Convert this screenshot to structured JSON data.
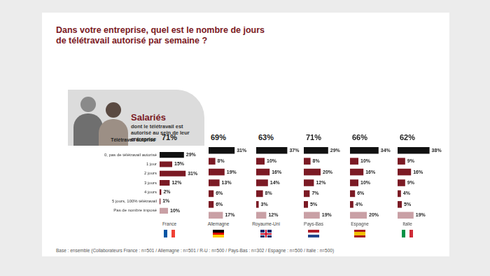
{
  "title": "Dans votre entreprise, quel est le nombre de jours de télétravail autorisé par semaine ?",
  "panel": {
    "title": "Salariés",
    "subtitle": "dont le télétravail est autorisé au sein de leur entreprise"
  },
  "row_label": "Télétravail autorisé",
  "note": "Base : ensemble (Collaborateurs France : n=501 / Allemagne : n=501 / R-U : n=500 / Pays-Bas : n=302 / Espagne : n=500 / Italie : n=500)",
  "chart_data": [
    {
      "type": "bar",
      "orientation": "horizontal",
      "title": "France",
      "total": {
        "value": 71,
        "label": "71%"
      },
      "categories": [
        "0, pas de télétravail autorisé",
        "1 jour",
        "2 jours",
        "3 jours",
        "4 jours",
        "5 jours, 100% télétravail",
        "Pas de nombre imposé"
      ],
      "values": [
        29,
        15,
        31,
        12,
        2,
        1,
        10
      ],
      "value_labels": [
        "29%",
        "15%",
        "31%",
        "12%",
        "2%",
        "1%",
        "10%"
      ],
      "colors": [
        "#111111",
        "#7b1a24",
        "#7b1a24",
        "#7b1a24",
        "#7b1a24",
        "#7b1a24",
        "#c9a0a5"
      ],
      "xlim": [
        0,
        40
      ],
      "data_labels": true,
      "tick_labels": "y"
    },
    {
      "type": "bar",
      "orientation": "horizontal",
      "title": "Allemagne",
      "total": {
        "value": 69,
        "label": "69%"
      },
      "categories": [
        "0, pas de télétravail autorisé",
        "1 jour",
        "2 jours",
        "3 jours",
        "4 jours",
        "5 jours, 100% télétravail",
        "Pas de nombre imposé"
      ],
      "values": [
        31,
        8,
        19,
        13,
        6,
        6,
        17
      ],
      "value_labels": [
        "31%",
        "8%",
        "19%",
        "13%",
        "6%",
        "6%",
        "17%"
      ],
      "colors": [
        "#111111",
        "#7b1a24",
        "#7b1a24",
        "#7b1a24",
        "#7b1a24",
        "#7b1a24",
        "#c9a0a5"
      ],
      "xlim": [
        0,
        40
      ],
      "data_labels": true,
      "tick_labels": false
    },
    {
      "type": "bar",
      "orientation": "horizontal",
      "title": "Royaume-Uni",
      "total": {
        "value": 63,
        "label": "63%"
      },
      "categories": [
        "0, pas de télétravail autorisé",
        "1 jour",
        "2 jours",
        "3 jours",
        "4 jours",
        "5 jours, 100% télétravail",
        "Pas de nombre imposé"
      ],
      "values": [
        37,
        10,
        16,
        14,
        8,
        3,
        12
      ],
      "value_labels": [
        "37%",
        "10%",
        "16%",
        "14%",
        "8%",
        "3%",
        "12%"
      ],
      "colors": [
        "#111111",
        "#7b1a24",
        "#7b1a24",
        "#7b1a24",
        "#7b1a24",
        "#7b1a24",
        "#c9a0a5"
      ],
      "xlim": [
        0,
        40
      ],
      "data_labels": true,
      "tick_labels": false
    },
    {
      "type": "bar",
      "orientation": "horizontal",
      "title": "Pays-Bas",
      "total": {
        "value": 71,
        "label": "71%"
      },
      "categories": [
        "0, pas de télétravail autorisé",
        "1 jour",
        "2 jours",
        "3 jours",
        "4 jours",
        "5 jours, 100% télétravail",
        "Pas de nombre imposé"
      ],
      "values": [
        29,
        8,
        20,
        12,
        7,
        5,
        19
      ],
      "value_labels": [
        "29%",
        "8%",
        "20%",
        "12%",
        "7%",
        "5%",
        "19%"
      ],
      "colors": [
        "#111111",
        "#7b1a24",
        "#7b1a24",
        "#7b1a24",
        "#7b1a24",
        "#7b1a24",
        "#c9a0a5"
      ],
      "xlim": [
        0,
        40
      ],
      "data_labels": true,
      "tick_labels": false
    },
    {
      "type": "bar",
      "orientation": "horizontal",
      "title": "Espagne",
      "total": {
        "value": 66,
        "label": "66%"
      },
      "categories": [
        "0, pas de télétravail autorisé",
        "1 jour",
        "2 jours",
        "3 jours",
        "4 jours",
        "5 jours, 100% télétravail",
        "Pas de nombre imposé"
      ],
      "values": [
        34,
        10,
        16,
        10,
        6,
        4,
        20
      ],
      "value_labels": [
        "34%",
        "10%",
        "16%",
        "10%",
        "6%",
        "4%",
        "20%"
      ],
      "colors": [
        "#111111",
        "#7b1a24",
        "#7b1a24",
        "#7b1a24",
        "#7b1a24",
        "#7b1a24",
        "#c9a0a5"
      ],
      "xlim": [
        0,
        40
      ],
      "data_labels": true,
      "tick_labels": false
    },
    {
      "type": "bar",
      "orientation": "horizontal",
      "title": "Italie",
      "total": {
        "value": 62,
        "label": "62%"
      },
      "categories": [
        "0, pas de télétravail autorisé",
        "1 jour",
        "2 jours",
        "3 jours",
        "4 jours",
        "5 jours, 100% télétravail",
        "Pas de nombre imposé"
      ],
      "values": [
        38,
        9,
        16,
        9,
        4,
        5,
        19
      ],
      "value_labels": [
        "38%",
        "9%",
        "16%",
        "9%",
        "4%",
        "5%",
        "19%"
      ],
      "colors": [
        "#111111",
        "#7b1a24",
        "#7b1a24",
        "#7b1a24",
        "#7b1a24",
        "#7b1a24",
        "#c9a0a5"
      ],
      "xlim": [
        0,
        40
      ],
      "data_labels": true,
      "tick_labels": false
    }
  ]
}
